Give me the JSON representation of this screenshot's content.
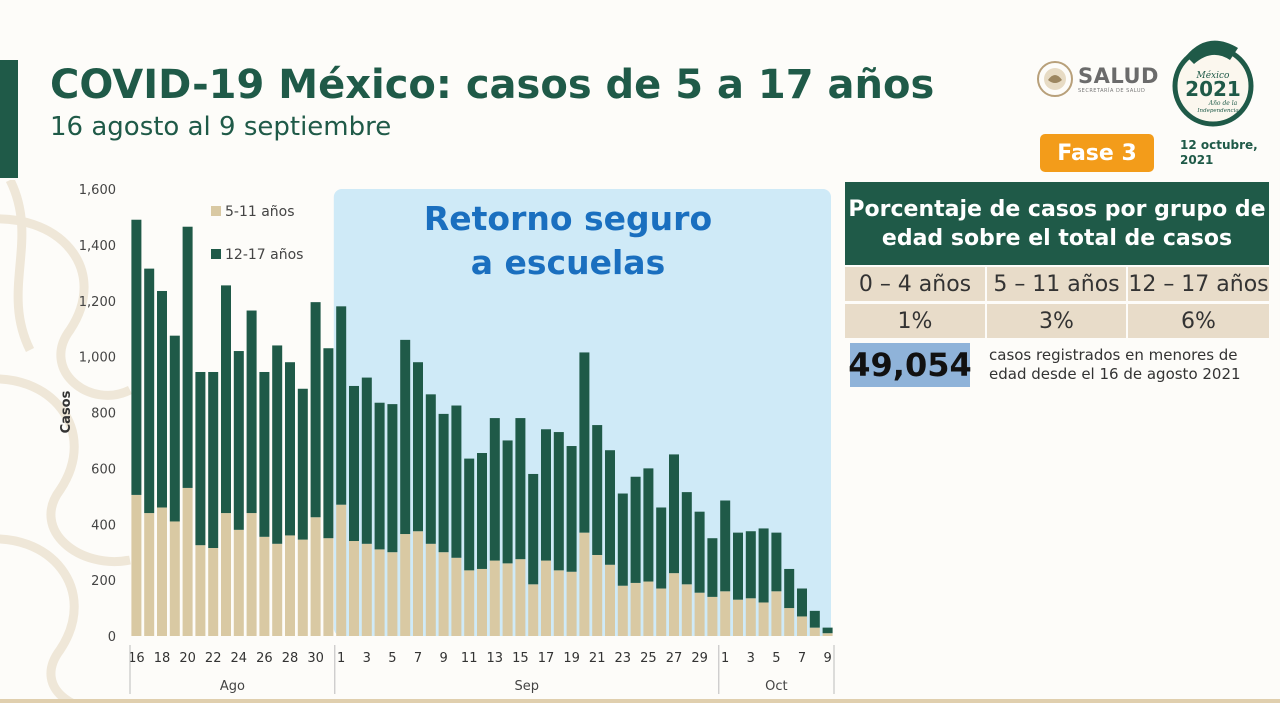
{
  "header": {
    "title": "COVID-19 México: casos de 5 a 17 años",
    "subtitle": "16 agosto al 9 septiembre"
  },
  "logos": {
    "salud_text": "SALUD",
    "salud_sub": "SECRETARÍA DE SALUD",
    "badge_lines": [
      "México",
      "2021",
      "Año de la",
      "Independencia"
    ]
  },
  "phase_badge": "Fase 3",
  "date_lines": [
    "12 octubre,",
    "2021"
  ],
  "colors": {
    "primary_green": "#1f5a48",
    "tan": "#d9c9a3",
    "highlight_blue": "#cfeaf7",
    "orange": "#f39c1a",
    "number_blue": "#8fb3d9"
  },
  "chart_data": {
    "type": "bar",
    "stacked": true,
    "annotation": [
      "Retorno seguro",
      "a escuelas"
    ],
    "highlight_start_index": 16,
    "ylabel": "Casos",
    "ylim": [
      0,
      1600
    ],
    "yticks": [
      "0",
      "200",
      "400",
      "600",
      "800",
      "1,000",
      "1,200",
      "1,400",
      "1,600"
    ],
    "x_tick_labels": [
      "16",
      "18",
      "20",
      "22",
      "24",
      "26",
      "28",
      "30",
      "1",
      "3",
      "5",
      "7",
      "9",
      "11",
      "13",
      "15",
      "17",
      "19",
      "21",
      "23",
      "25",
      "27",
      "29",
      "1",
      "3",
      "5",
      "7",
      "9"
    ],
    "x_tick_index": [
      0,
      2,
      4,
      6,
      8,
      10,
      12,
      14,
      16,
      18,
      20,
      22,
      24,
      26,
      28,
      30,
      32,
      34,
      36,
      38,
      40,
      42,
      44,
      46,
      48,
      50,
      52,
      54
    ],
    "months": [
      {
        "label": "Ago",
        "start": 0,
        "end": 15
      },
      {
        "label": "Sep",
        "start": 16,
        "end": 45
      },
      {
        "label": "Oct",
        "start": 46,
        "end": 54
      }
    ],
    "grid": false,
    "legend_position": "top-left",
    "series": [
      {
        "name": "5-11 años",
        "color": "#d9c9a3",
        "values": [
          505,
          440,
          460,
          410,
          530,
          325,
          315,
          440,
          380,
          440,
          355,
          330,
          360,
          345,
          425,
          350,
          470,
          340,
          330,
          310,
          300,
          365,
          375,
          330,
          300,
          280,
          235,
          240,
          270,
          260,
          275,
          185,
          270,
          235,
          230,
          370,
          290,
          255,
          180,
          190,
          195,
          170,
          225,
          185,
          155,
          140,
          160,
          130,
          135,
          120,
          160,
          100,
          70,
          30,
          10
        ]
      },
      {
        "name": "12-17 años",
        "color": "#1f5a48",
        "values": [
          985,
          875,
          775,
          665,
          935,
          620,
          630,
          815,
          640,
          725,
          590,
          710,
          620,
          540,
          770,
          680,
          710,
          555,
          595,
          525,
          530,
          695,
          605,
          535,
          495,
          545,
          400,
          415,
          510,
          440,
          505,
          395,
          470,
          495,
          450,
          645,
          465,
          410,
          330,
          380,
          405,
          290,
          425,
          330,
          290,
          210,
          325,
          240,
          240,
          265,
          210,
          140,
          100,
          60,
          20
        ]
      }
    ]
  },
  "panel": {
    "title": "Porcentaje de casos por grupo de edad sobre el total de casos",
    "headers": [
      "0 – 4 años",
      "5 – 11 años",
      "12 – 17 años"
    ],
    "values": [
      "1%",
      "3%",
      "6%"
    ],
    "total": "49,054",
    "note": "casos registrados en menores de edad desde el 16 de agosto 2021"
  }
}
